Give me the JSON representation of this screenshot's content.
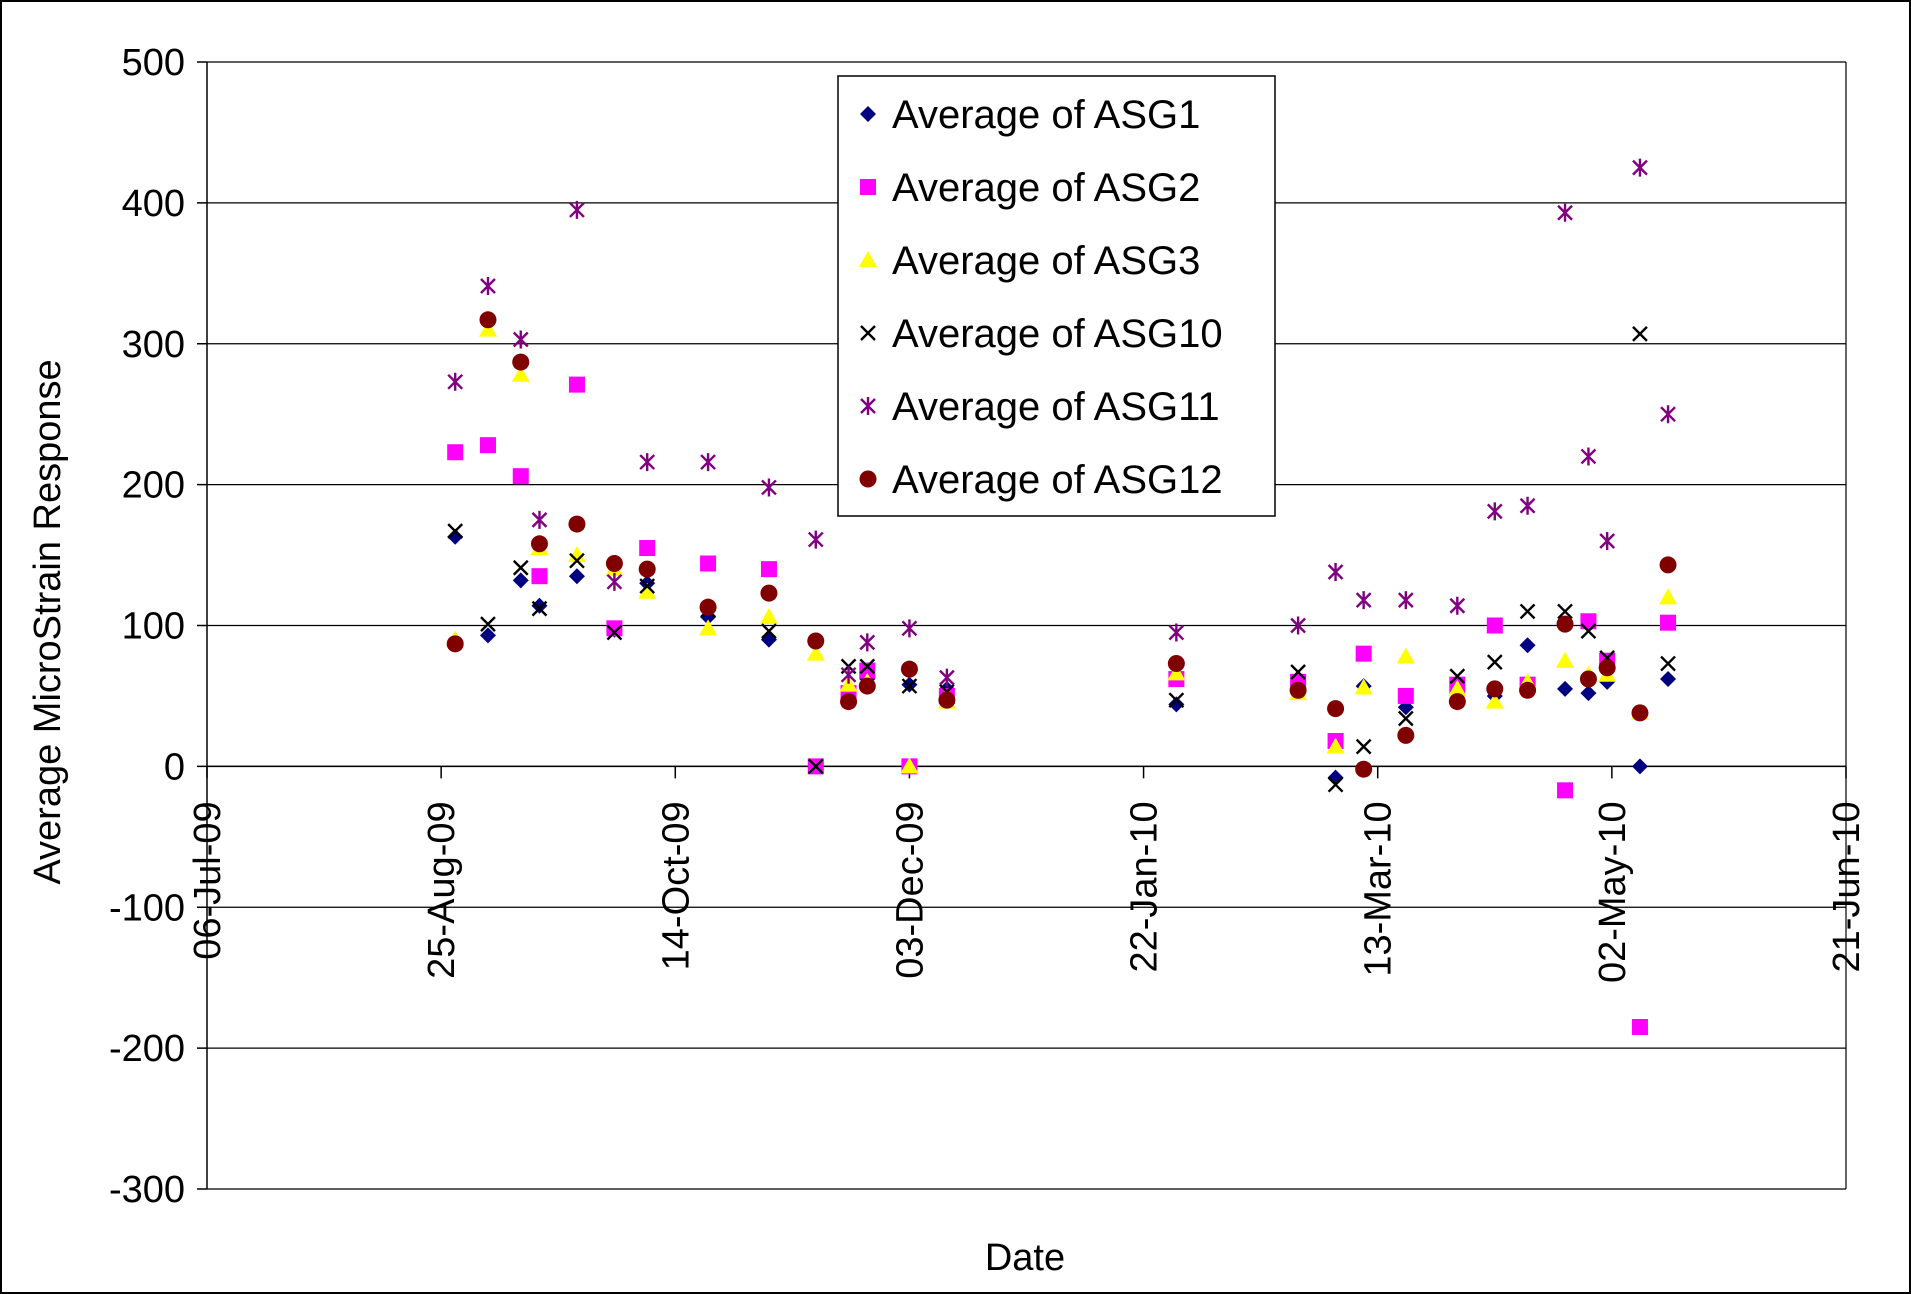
{
  "chart_data": {
    "type": "scatter",
    "title": "",
    "xlabel": "Date",
    "ylabel": "Average MicroStrain Response",
    "x_axis_type": "date",
    "xlim": [
      "2009-07-06",
      "2010-06-21"
    ],
    "ylim": [
      -300,
      500
    ],
    "x_ticks": [
      {
        "date": "2009-07-06",
        "label": "06-Jul-09"
      },
      {
        "date": "2009-08-25",
        "label": "25-Aug-09"
      },
      {
        "date": "2009-10-14",
        "label": "14-Oct-09"
      },
      {
        "date": "2009-12-03",
        "label": "03-Dec-09"
      },
      {
        "date": "2010-01-22",
        "label": "22-Jan-10"
      },
      {
        "date": "2010-03-13",
        "label": "13-Mar-10"
      },
      {
        "date": "2010-05-02",
        "label": "02-May-10"
      },
      {
        "date": "2010-06-21",
        "label": "21-Jun-10"
      }
    ],
    "y_ticks": [
      500,
      400,
      300,
      200,
      100,
      0,
      -100,
      -200,
      -300
    ],
    "grid": {
      "horizontal": true,
      "vertical": false
    },
    "legend_position": "top-center",
    "series": [
      {
        "name": "Average of ASG1",
        "marker": "diamond",
        "color": "#000080",
        "points": [
          {
            "x": "2009-08-28",
            "y": 163
          },
          {
            "x": "2009-09-04",
            "y": 93
          },
          {
            "x": "2009-09-11",
            "y": 132
          },
          {
            "x": "2009-09-15",
            "y": 114
          },
          {
            "x": "2009-09-23",
            "y": 135
          },
          {
            "x": "2009-10-01",
            "y": 97
          },
          {
            "x": "2009-10-08",
            "y": 130
          },
          {
            "x": "2009-10-21",
            "y": 106
          },
          {
            "x": "2009-11-03",
            "y": 90
          },
          {
            "x": "2009-11-13",
            "y": 0
          },
          {
            "x": "2009-11-20",
            "y": 55
          },
          {
            "x": "2009-11-24",
            "y": 62
          },
          {
            "x": "2009-12-03",
            "y": 58
          },
          {
            "x": "2009-12-11",
            "y": 55
          },
          {
            "x": "2010-01-29",
            "y": 44
          },
          {
            "x": "2010-02-24",
            "y": 58
          },
          {
            "x": "2010-03-04",
            "y": -8
          },
          {
            "x": "2010-03-10",
            "y": 57
          },
          {
            "x": "2010-03-19",
            "y": 42
          },
          {
            "x": "2010-03-30",
            "y": 52
          },
          {
            "x": "2010-04-07",
            "y": 50
          },
          {
            "x": "2010-04-14",
            "y": 86
          },
          {
            "x": "2010-04-22",
            "y": 55
          },
          {
            "x": "2010-04-27",
            "y": 52
          },
          {
            "x": "2010-05-01",
            "y": 60
          },
          {
            "x": "2010-05-08",
            "y": 0
          },
          {
            "x": "2010-05-14",
            "y": 62
          }
        ]
      },
      {
        "name": "Average of ASG2",
        "marker": "square",
        "color": "#FF00FF",
        "points": [
          {
            "x": "2009-08-28",
            "y": 223
          },
          {
            "x": "2009-09-04",
            "y": 228
          },
          {
            "x": "2009-09-11",
            "y": 206
          },
          {
            "x": "2009-09-15",
            "y": 135
          },
          {
            "x": "2009-09-23",
            "y": 271
          },
          {
            "x": "2009-10-01",
            "y": 98
          },
          {
            "x": "2009-10-08",
            "y": 155
          },
          {
            "x": "2009-10-21",
            "y": 144
          },
          {
            "x": "2009-11-03",
            "y": 140
          },
          {
            "x": "2009-11-13",
            "y": 0
          },
          {
            "x": "2009-11-20",
            "y": 52
          },
          {
            "x": "2009-11-24",
            "y": 68
          },
          {
            "x": "2009-12-03",
            "y": 0
          },
          {
            "x": "2009-12-11",
            "y": 50
          },
          {
            "x": "2010-01-29",
            "y": 62
          },
          {
            "x": "2010-02-24",
            "y": 60
          },
          {
            "x": "2010-03-04",
            "y": 18
          },
          {
            "x": "2010-03-10",
            "y": 80
          },
          {
            "x": "2010-03-19",
            "y": 50
          },
          {
            "x": "2010-03-30",
            "y": 58
          },
          {
            "x": "2010-04-07",
            "y": 100
          },
          {
            "x": "2010-04-14",
            "y": 58
          },
          {
            "x": "2010-04-22",
            "y": -17
          },
          {
            "x": "2010-04-27",
            "y": 103
          },
          {
            "x": "2010-05-01",
            "y": 75
          },
          {
            "x": "2010-05-08",
            "y": -185
          },
          {
            "x": "2010-05-14",
            "y": 102
          }
        ]
      },
      {
        "name": "Average of ASG3",
        "marker": "triangle",
        "color": "#FFFF00",
        "points": [
          {
            "x": "2009-08-28",
            "y": 90
          },
          {
            "x": "2009-09-04",
            "y": 310
          },
          {
            "x": "2009-09-11",
            "y": 278
          },
          {
            "x": "2009-09-15",
            "y": 155
          },
          {
            "x": "2009-09-23",
            "y": 150
          },
          {
            "x": "2009-10-01",
            "y": 140
          },
          {
            "x": "2009-10-08",
            "y": 124
          },
          {
            "x": "2009-10-21",
            "y": 98
          },
          {
            "x": "2009-11-03",
            "y": 106
          },
          {
            "x": "2009-11-13",
            "y": 80
          },
          {
            "x": "2009-11-20",
            "y": 58
          },
          {
            "x": "2009-11-24",
            "y": 60
          },
          {
            "x": "2009-12-03",
            "y": 0
          },
          {
            "x": "2009-12-11",
            "y": 46
          },
          {
            "x": "2010-01-29",
            "y": 66
          },
          {
            "x": "2010-02-24",
            "y": 52
          },
          {
            "x": "2010-03-04",
            "y": 14
          },
          {
            "x": "2010-03-10",
            "y": 56
          },
          {
            "x": "2010-03-19",
            "y": 78
          },
          {
            "x": "2010-03-30",
            "y": 55
          },
          {
            "x": "2010-04-07",
            "y": 46
          },
          {
            "x": "2010-04-14",
            "y": 60
          },
          {
            "x": "2010-04-22",
            "y": 75
          },
          {
            "x": "2010-04-27",
            "y": 65
          },
          {
            "x": "2010-05-01",
            "y": 65
          },
          {
            "x": "2010-05-08",
            "y": 38
          },
          {
            "x": "2010-05-14",
            "y": 120
          }
        ]
      },
      {
        "name": "Average of ASG10",
        "marker": "x",
        "color": "#000000",
        "points": [
          {
            "x": "2009-08-28",
            "y": 167
          },
          {
            "x": "2009-09-04",
            "y": 101
          },
          {
            "x": "2009-09-11",
            "y": 141
          },
          {
            "x": "2009-09-15",
            "y": 112
          },
          {
            "x": "2009-09-23",
            "y": 146
          },
          {
            "x": "2009-10-01",
            "y": 95
          },
          {
            "x": "2009-10-08",
            "y": 128
          },
          {
            "x": "2009-10-21",
            "y": 111
          },
          {
            "x": "2009-11-03",
            "y": 96
          },
          {
            "x": "2009-11-13",
            "y": 0
          },
          {
            "x": "2009-11-20",
            "y": 71
          },
          {
            "x": "2009-11-24",
            "y": 71
          },
          {
            "x": "2009-12-03",
            "y": 57
          },
          {
            "x": "2009-12-11",
            "y": 53
          },
          {
            "x": "2010-01-29",
            "y": 47
          },
          {
            "x": "2010-02-24",
            "y": 67
          },
          {
            "x": "2010-03-04",
            "y": -13
          },
          {
            "x": "2010-03-10",
            "y": 14
          },
          {
            "x": "2010-03-19",
            "y": 34
          },
          {
            "x": "2010-03-30",
            "y": 64
          },
          {
            "x": "2010-04-07",
            "y": 74
          },
          {
            "x": "2010-04-14",
            "y": 110
          },
          {
            "x": "2010-04-22",
            "y": 110
          },
          {
            "x": "2010-04-27",
            "y": 96
          },
          {
            "x": "2010-05-01",
            "y": 77
          },
          {
            "x": "2010-05-08",
            "y": 307
          },
          {
            "x": "2010-05-14",
            "y": 73
          }
        ]
      },
      {
        "name": "Average of ASG11",
        "marker": "asterisk",
        "color": "#800080",
        "points": [
          {
            "x": "2009-08-28",
            "y": 273
          },
          {
            "x": "2009-09-04",
            "y": 341
          },
          {
            "x": "2009-09-11",
            "y": 303
          },
          {
            "x": "2009-09-15",
            "y": 175
          },
          {
            "x": "2009-09-23",
            "y": 395
          },
          {
            "x": "2009-10-01",
            "y": 131
          },
          {
            "x": "2009-10-08",
            "y": 216
          },
          {
            "x": "2009-10-21",
            "y": 216
          },
          {
            "x": "2009-11-03",
            "y": 198
          },
          {
            "x": "2009-11-13",
            "y": 161
          },
          {
            "x": "2009-11-20",
            "y": 65
          },
          {
            "x": "2009-11-24",
            "y": 88
          },
          {
            "x": "2009-12-03",
            "y": 98
          },
          {
            "x": "2009-12-11",
            "y": 63
          },
          {
            "x": "2010-01-29",
            "y": 95
          },
          {
            "x": "2010-02-24",
            "y": 100
          },
          {
            "x": "2010-03-04",
            "y": 138
          },
          {
            "x": "2010-03-10",
            "y": 118
          },
          {
            "x": "2010-03-19",
            "y": 118
          },
          {
            "x": "2010-03-30",
            "y": 114
          },
          {
            "x": "2010-04-07",
            "y": 181
          },
          {
            "x": "2010-04-14",
            "y": 185
          },
          {
            "x": "2010-04-22",
            "y": 393
          },
          {
            "x": "2010-04-27",
            "y": 220
          },
          {
            "x": "2010-05-01",
            "y": 160
          },
          {
            "x": "2010-05-08",
            "y": 425
          },
          {
            "x": "2010-05-14",
            "y": 250
          }
        ]
      },
      {
        "name": "Average of ASG12",
        "marker": "circle",
        "color": "#800000",
        "points": [
          {
            "x": "2009-08-28",
            "y": 87
          },
          {
            "x": "2009-09-04",
            "y": 317
          },
          {
            "x": "2009-09-11",
            "y": 287
          },
          {
            "x": "2009-09-15",
            "y": 158
          },
          {
            "x": "2009-09-23",
            "y": 172
          },
          {
            "x": "2009-10-01",
            "y": 144
          },
          {
            "x": "2009-10-08",
            "y": 140
          },
          {
            "x": "2009-10-21",
            "y": 113
          },
          {
            "x": "2009-11-03",
            "y": 123
          },
          {
            "x": "2009-11-13",
            "y": 89
          },
          {
            "x": "2009-11-20",
            "y": 46
          },
          {
            "x": "2009-11-24",
            "y": 57
          },
          {
            "x": "2009-12-03",
            "y": 69
          },
          {
            "x": "2009-12-11",
            "y": 47
          },
          {
            "x": "2010-01-29",
            "y": 73
          },
          {
            "x": "2010-02-24",
            "y": 54
          },
          {
            "x": "2010-03-04",
            "y": 41
          },
          {
            "x": "2010-03-10",
            "y": -2
          },
          {
            "x": "2010-03-19",
            "y": 22
          },
          {
            "x": "2010-03-30",
            "y": 46
          },
          {
            "x": "2010-04-07",
            "y": 55
          },
          {
            "x": "2010-04-14",
            "y": 54
          },
          {
            "x": "2010-04-22",
            "y": 101
          },
          {
            "x": "2010-04-27",
            "y": 62
          },
          {
            "x": "2010-05-01",
            "y": 70
          },
          {
            "x": "2010-05-08",
            "y": 38
          },
          {
            "x": "2010-05-14",
            "y": 143
          }
        ]
      }
    ]
  }
}
